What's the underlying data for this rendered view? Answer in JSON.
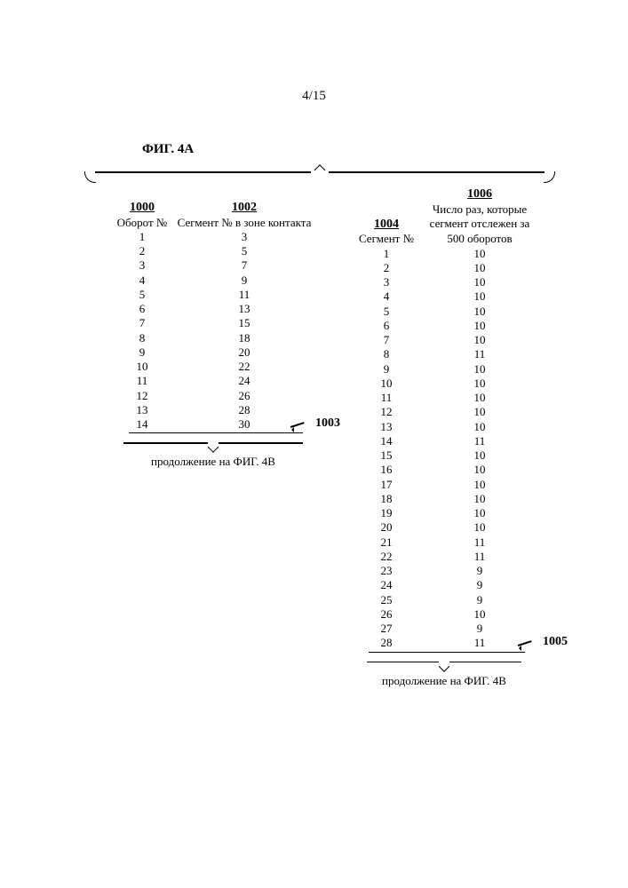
{
  "page_number": "4/15",
  "figure_label": "ФИГ. 4А",
  "left_table": {
    "ref_col1": "1000",
    "ref_col2": "1002",
    "hdr_col1": "Оборот №",
    "hdr_col2": "Сегмент № в зоне контакта",
    "rows": [
      [
        "1",
        "3"
      ],
      [
        "2",
        "5"
      ],
      [
        "3",
        "7"
      ],
      [
        "4",
        "9"
      ],
      [
        "5",
        "11"
      ],
      [
        "6",
        "13"
      ],
      [
        "7",
        "15"
      ],
      [
        "8",
        "18"
      ],
      [
        "9",
        "20"
      ],
      [
        "10",
        "22"
      ],
      [
        "11",
        "24"
      ],
      [
        "12",
        "26"
      ],
      [
        "13",
        "28"
      ],
      [
        "14",
        "30"
      ]
    ],
    "callout_ref": "1003",
    "continuation": "продолжение на ФИГ. 4В"
  },
  "right_table": {
    "ref_col1": "1004",
    "ref_col2": "1006",
    "hdr_col1": "Сегмент №",
    "hdr_col2_line1": "Число раз, которые",
    "hdr_col2_line2": "сегмент отслежен за",
    "hdr_col2_line3": "500 оборотов",
    "rows": [
      [
        "1",
        "10"
      ],
      [
        "2",
        "10"
      ],
      [
        "3",
        "10"
      ],
      [
        "4",
        "10"
      ],
      [
        "5",
        "10"
      ],
      [
        "6",
        "10"
      ],
      [
        "7",
        "10"
      ],
      [
        "8",
        "11"
      ],
      [
        "9",
        "10"
      ],
      [
        "10",
        "10"
      ],
      [
        "11",
        "10"
      ],
      [
        "12",
        "10"
      ],
      [
        "13",
        "10"
      ],
      [
        "14",
        "11"
      ],
      [
        "15",
        "10"
      ],
      [
        "16",
        "10"
      ],
      [
        "17",
        "10"
      ],
      [
        "18",
        "10"
      ],
      [
        "19",
        "10"
      ],
      [
        "20",
        "10"
      ],
      [
        "21",
        "11"
      ],
      [
        "22",
        "11"
      ],
      [
        "23",
        "9"
      ],
      [
        "24",
        "9"
      ],
      [
        "25",
        "9"
      ],
      [
        "26",
        "10"
      ],
      [
        "27",
        "9"
      ],
      [
        "28",
        "11"
      ]
    ],
    "callout_ref": "1005",
    "continuation": "продолжение на ФИГ. 4В"
  }
}
